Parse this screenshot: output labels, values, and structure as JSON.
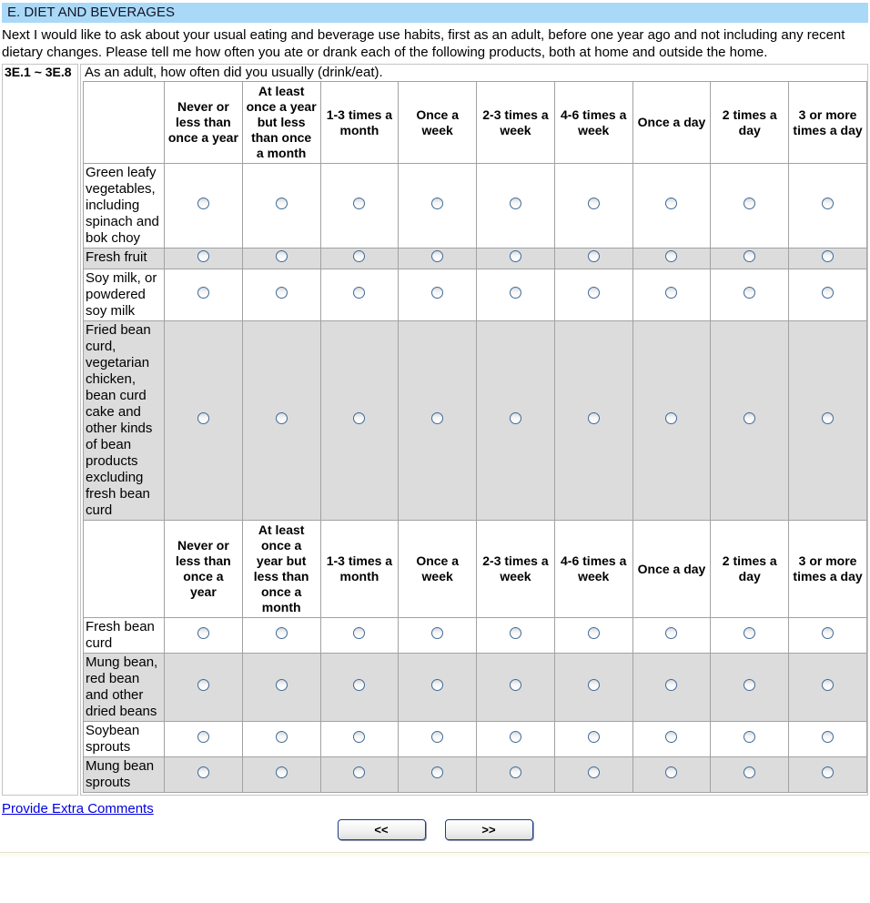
{
  "header": {
    "title": "E. DIET AND BEVERAGES"
  },
  "intro": "Next I would like to ask about your usual eating and beverage use habits, first as an adult, before one year ago and not including any recent dietary changes. Please tell me how often you ate or drank each of the following products, both at home and outside the home.",
  "question": {
    "code": "3E.1 ~ 3E.8",
    "text": "As an adult, how often did you usually (drink/eat)."
  },
  "frequency_options": [
    "Never or less than once a year",
    "At least once a year but less than once a month",
    "1-3 times a month",
    "Once a week",
    "2-3 times a week",
    "4-6 times a week",
    "Once a day",
    "2 times a day",
    "3 or more times a day"
  ],
  "grid": {
    "sections": [
      {
        "header_labels": [
          "Never or\nless than\nonce a year",
          "At least\nonce a year\nbut less\nthan once\na month",
          "1-3 times a\nmonth",
          "Once a\nweek",
          "2-3 times a\nweek",
          "4-6 times a\nweek",
          "Once a day",
          "2 times a\nday",
          "3 or more\ntimes a day"
        ],
        "rows": [
          {
            "label": "Green leafy vegetables, including spinach and bok choy",
            "shaded": false,
            "selected": null
          },
          {
            "label": "Fresh fruit",
            "shaded": true,
            "selected": null
          },
          {
            "label": "Soy milk, or powdered soy milk",
            "shaded": false,
            "selected": null
          },
          {
            "label": "Fried bean curd, vegetarian chicken, bean curd cake and other kinds of bean products excluding fresh bean curd",
            "shaded": true,
            "selected": null
          }
        ]
      },
      {
        "header_labels": [
          "Never or\nless than\nonce a\nyear",
          "At least\nonce a\nyear but\nless than\nonce a\nmonth",
          "1-3 times a\nmonth",
          "Once a\nweek",
          "2-3 times a\nweek",
          "4-6 times a\nweek",
          "Once a day",
          "2 times a\nday",
          "3 or more\ntimes a day"
        ],
        "rows": [
          {
            "label": "Fresh bean curd",
            "shaded": false,
            "selected": null
          },
          {
            "label": "Mung bean, red bean and other dried beans",
            "shaded": true,
            "selected": null
          },
          {
            "label": "Soybean sprouts",
            "shaded": false,
            "selected": null
          },
          {
            "label": "Mung bean sprouts",
            "shaded": true,
            "selected": null
          }
        ]
      }
    ]
  },
  "footer": {
    "comments_link": "Provide Extra Comments",
    "prev_button": "<<",
    "next_button": ">>"
  },
  "colors": {
    "section_header_bg": "#A9D9F6",
    "shaded_row_bg": "#DCDCDC",
    "grid_border": "#A2A2A2",
    "outer_border": "#C4C4C4",
    "radio_border": "#3F6A99",
    "link": "#0000E0",
    "button_border": "#1B3F7D"
  }
}
